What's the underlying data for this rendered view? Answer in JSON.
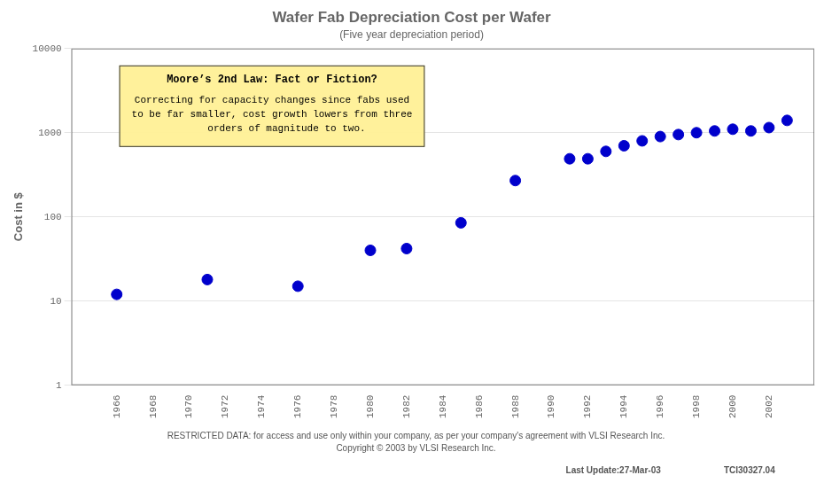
{
  "chart_data": {
    "type": "scatter",
    "title": "Wafer Fab Depreciation Cost per Wafer",
    "subtitle": "(Five year depreciation period)",
    "ylabel": "Cost in $",
    "x": [
      1966,
      1971,
      1976,
      1980,
      1982,
      1985,
      1988,
      1991,
      1992,
      1993,
      1994,
      1995,
      1996,
      1997,
      1998,
      1999,
      2000,
      2001,
      2002,
      2003
    ],
    "values": [
      12,
      18,
      15,
      40,
      42,
      85,
      270,
      490,
      490,
      600,
      700,
      800,
      900,
      950,
      1000,
      1050,
      1100,
      1050,
      1150,
      1400
    ],
    "color": "#0000CC",
    "xlim": [
      1963.5,
      2004.5
    ],
    "xticks": [
      1966,
      1968,
      1970,
      1972,
      1974,
      1976,
      1978,
      1980,
      1982,
      1984,
      1986,
      1988,
      1990,
      1992,
      1994,
      1996,
      1998,
      2000,
      2002
    ],
    "ylim": [
      1,
      10000
    ],
    "yticks": [
      1,
      10,
      100,
      1000,
      10000
    ],
    "log": "y",
    "grid": "y",
    "annotations": [
      "Moore’s 2nd Law: Fact or Fiction?",
      "Correcting for capacity changes since fabs used\nto be far smaller, cost growth lowers from three\n     orders of magnitude to two."
    ],
    "footnotes": [
      "RESTRICTED DATA: for access and use only within your company, as per your company's agreement with VLSI Research Inc.",
      "Copyright © 2003 by VLSI Research Inc."
    ],
    "footer": [
      "Last Update:27-Mar-03",
      "TCI30327.04"
    ]
  }
}
